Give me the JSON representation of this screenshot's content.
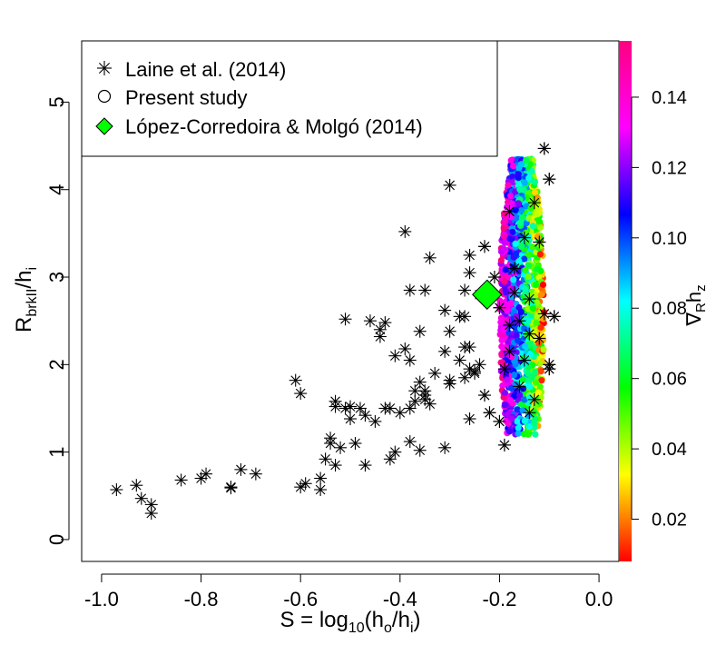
{
  "chart_data": {
    "type": "scatter",
    "title": "",
    "xlabel": "S = log10(ho/hi)",
    "xlabel_parts": {
      "main": "S = log",
      "sub1": "10",
      "mid": "(h",
      "sub2": "o",
      "mid2": "/h",
      "sub3": "i",
      "end": ")"
    },
    "ylabel": "Rbrkll/hi",
    "ylabel_parts": {
      "main": "R",
      "sub1": "brkII",
      "mid": "/h",
      "sub2": "i"
    },
    "colorbar_label": "∇Rhz",
    "colorbar_label_parts": {
      "main": "∇",
      "sub1": "R",
      "mid": "h",
      "sub2": "z"
    },
    "xlim": [
      -1.04,
      0.04
    ],
    "ylim": [
      -0.25,
      5.7
    ],
    "xticks": [
      -1.0,
      -0.8,
      -0.6,
      -0.4,
      -0.2,
      0.0
    ],
    "xtick_labels": [
      "-1.0",
      "-0.8",
      "-0.6",
      "-0.4",
      "-0.2",
      "0.0"
    ],
    "yticks": [
      0,
      1,
      2,
      3,
      4,
      5
    ],
    "ytick_labels": [
      "0",
      "1",
      "2",
      "3",
      "4",
      "5"
    ],
    "colorbar": {
      "range": [
        0.008,
        0.156
      ],
      "ticks": [
        0.02,
        0.04,
        0.06,
        0.08,
        0.1,
        0.12,
        0.14
      ],
      "tick_labels": [
        "0.02",
        "0.04",
        "0.06",
        "0.08",
        "0.10",
        "0.12",
        "0.14"
      ],
      "colors": [
        "#ff0000",
        "#ffff00",
        "#00ff00",
        "#00ffff",
        "#0000ff",
        "#ff00ff",
        "#ff0080"
      ]
    },
    "grid": false,
    "legend": {
      "placement": "top-left",
      "entries": [
        {
          "label": "Laine et al. (2014)",
          "marker": "asterisk",
          "color": "#000000"
        },
        {
          "label": "Present study",
          "marker": "open-circle",
          "color": "#000000"
        },
        {
          "label": "López-Corredoira & Molgó (2014)",
          "marker": "diamond",
          "color": "#00ff00"
        }
      ]
    },
    "series": [
      {
        "name": "Laine et al. (2014)",
        "marker": "asterisk",
        "points": [
          [
            -0.97,
            0.57
          ],
          [
            -0.93,
            0.62
          ],
          [
            -0.92,
            0.47
          ],
          [
            -0.9,
            0.4
          ],
          [
            -0.9,
            0.3
          ],
          [
            -0.84,
            0.68
          ],
          [
            -0.8,
            0.7
          ],
          [
            -0.79,
            0.75
          ],
          [
            -0.74,
            0.6
          ],
          [
            -0.74,
            0.59
          ],
          [
            -0.72,
            0.8
          ],
          [
            -0.69,
            0.75
          ],
          [
            -0.61,
            1.82
          ],
          [
            -0.6,
            1.67
          ],
          [
            -0.6,
            0.6
          ],
          [
            -0.59,
            0.64
          ],
          [
            -0.56,
            0.7
          ],
          [
            -0.56,
            0.57
          ],
          [
            -0.55,
            0.92
          ],
          [
            -0.54,
            1.16
          ],
          [
            -0.54,
            1.1
          ],
          [
            -0.53,
            1.58
          ],
          [
            -0.53,
            1.52
          ],
          [
            -0.53,
            0.85
          ],
          [
            -0.52,
            1.05
          ],
          [
            -0.51,
            2.52
          ],
          [
            -0.51,
            1.5
          ],
          [
            -0.5,
            1.38
          ],
          [
            -0.5,
            1.52
          ],
          [
            -0.49,
            1.1
          ],
          [
            -0.48,
            1.5
          ],
          [
            -0.47,
            0.85
          ],
          [
            -0.47,
            1.42
          ],
          [
            -0.46,
            2.5
          ],
          [
            -0.45,
            1.35
          ],
          [
            -0.44,
            2.4
          ],
          [
            -0.44,
            2.32
          ],
          [
            -0.43,
            2.48
          ],
          [
            -0.43,
            1.5
          ],
          [
            -0.42,
            1.5
          ],
          [
            -0.42,
            0.92
          ],
          [
            -0.41,
            1.0
          ],
          [
            -0.41,
            2.1
          ],
          [
            -0.4,
            1.45
          ],
          [
            -0.39,
            3.52
          ],
          [
            -0.39,
            2.18
          ],
          [
            -0.38,
            2.85
          ],
          [
            -0.38,
            2.05
          ],
          [
            -0.38,
            1.5
          ],
          [
            -0.38,
            1.12
          ],
          [
            -0.37,
            1.7
          ],
          [
            -0.37,
            1.58
          ],
          [
            -0.36,
            2.38
          ],
          [
            -0.36,
            1.8
          ],
          [
            -0.36,
            1.02
          ],
          [
            -0.35,
            1.7
          ],
          [
            -0.35,
            1.6
          ],
          [
            -0.35,
            1.65
          ],
          [
            -0.35,
            2.85
          ],
          [
            -0.34,
            3.22
          ],
          [
            -0.34,
            1.55
          ],
          [
            -0.33,
            1.9
          ],
          [
            -0.31,
            2.62
          ],
          [
            -0.31,
            2.15
          ],
          [
            -0.31,
            1.05
          ],
          [
            -0.3,
            4.05
          ],
          [
            -0.3,
            2.38
          ],
          [
            -0.3,
            1.78
          ],
          [
            -0.3,
            1.82
          ],
          [
            -0.28,
            2.05
          ],
          [
            -0.28,
            2.55
          ],
          [
            -0.27,
            2.55
          ],
          [
            -0.27,
            2.2
          ],
          [
            -0.27,
            2.85
          ],
          [
            -0.27,
            1.85
          ],
          [
            -0.26,
            3.25
          ],
          [
            -0.26,
            3.05
          ],
          [
            -0.26,
            2.2
          ],
          [
            -0.26,
            1.95
          ],
          [
            -0.26,
            1.38
          ],
          [
            -0.25,
            1.92
          ],
          [
            -0.25,
            1.9
          ],
          [
            -0.24,
            2.0
          ],
          [
            -0.24,
            2.8
          ],
          [
            -0.23,
            3.35
          ],
          [
            -0.23,
            1.65
          ],
          [
            -0.22,
            1.45
          ],
          [
            -0.22,
            2.8
          ],
          [
            -0.21,
            3.0
          ],
          [
            -0.2,
            2.65
          ],
          [
            -0.2,
            1.35
          ],
          [
            -0.19,
            1.08
          ],
          [
            -0.18,
            3.75
          ],
          [
            -0.18,
            2.45
          ],
          [
            -0.18,
            2.15
          ],
          [
            -0.17,
            3.1
          ],
          [
            -0.17,
            2.82
          ],
          [
            -0.16,
            2.5
          ],
          [
            -0.15,
            3.45
          ],
          [
            -0.15,
            2.05
          ],
          [
            -0.14,
            2.75
          ],
          [
            -0.14,
            2.35
          ],
          [
            -0.13,
            1.6
          ],
          [
            -0.12,
            3.4
          ],
          [
            -0.12,
            2.3
          ],
          [
            -0.11,
            4.47
          ],
          [
            -0.11,
            2.58
          ],
          [
            -0.1,
            2.0
          ],
          [
            -0.1,
            4.12
          ],
          [
            -0.1,
            1.95
          ],
          [
            -0.09,
            2.55
          ],
          [
            -0.13,
            3.85
          ],
          [
            -0.16,
            1.75
          ],
          [
            -0.19,
            1.95
          ],
          [
            -0.14,
            1.45
          ]
        ]
      },
      {
        "name": "Present study",
        "marker": "filled-circle",
        "note_colors": "colored by gradient value",
        "cloud": {
          "x_center": -0.155,
          "x_halfwidth": 0.045,
          "y_min": 1.2,
          "y_max": 4.35,
          "count": 1400,
          "seed": 7
        }
      },
      {
        "name": "López-Corredoira & Molgó (2014)",
        "marker": "diamond",
        "points": [
          [
            -0.225,
            2.8
          ]
        ]
      }
    ]
  }
}
